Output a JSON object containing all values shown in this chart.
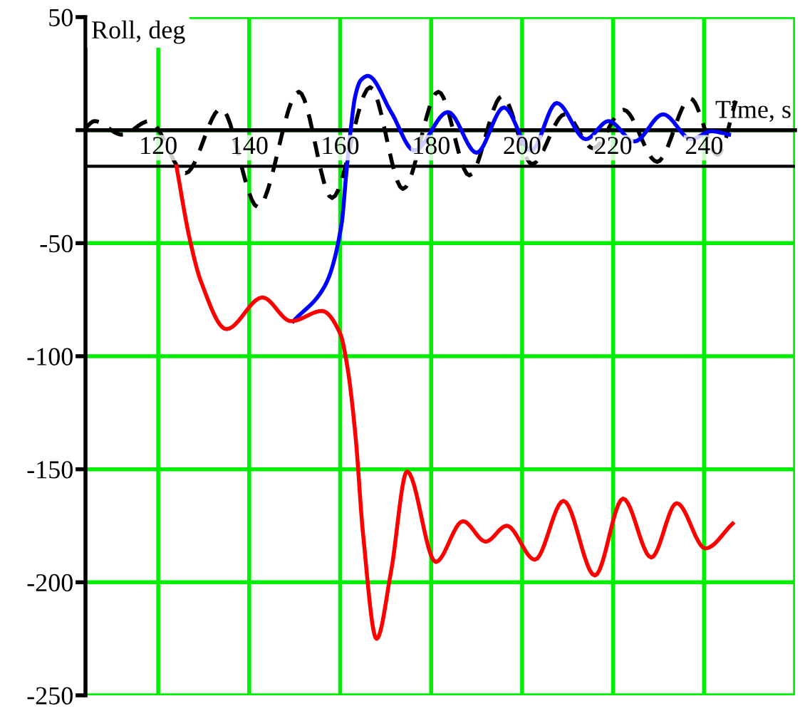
{
  "chart_data": {
    "type": "line",
    "xlabel": "Time, s",
    "ylabel": "Roll, deg",
    "xlim": [
      104,
      260
    ],
    "ylim": [
      -250,
      50
    ],
    "xticks": [
      120,
      140,
      160,
      180,
      200,
      220,
      240,
      {
        "value": 260,
        "label": null
      }
    ],
    "yticks": [
      50,
      {
        "value": 0,
        "label": null
      },
      -50,
      -100,
      -150,
      -200,
      -250
    ],
    "grid": true,
    "marker": "none",
    "ref_lines": [
      {
        "axis": "y",
        "value": -16,
        "color": "#000000",
        "line_style": "solid"
      }
    ],
    "series": [
      {
        "color": "#000000",
        "line_style": "dashed",
        "x": [
          104,
          106,
          112,
          118,
          126,
          133.8,
          141.9,
          150.9,
          158.2,
          166.6,
          173.8,
          181.6,
          188.4,
          195.6,
          202.2,
          209.4,
          215.6,
          222.3,
          229.7,
          237,
          243,
          247
        ],
        "values": [
          1,
          4,
          -2,
          4,
          -19,
          9.5,
          -34,
          17,
          -30,
          19,
          -26,
          17,
          -20,
          15,
          -15,
          7,
          -8,
          9,
          -14,
          14,
          -11,
          13
        ]
      },
      {
        "color": "#0000ff",
        "line_style": "solid",
        "x": [
          149.7,
          156.6,
          160.3,
          161.3,
          162.3,
          163.3,
          164.5,
          166.1,
          171.2,
          176.3,
          183.7,
          190,
          196,
          202,
          207.6,
          214,
          219,
          224.7,
          231,
          237.2,
          241.6,
          245.5
        ],
        "values": [
          -84.5,
          -69,
          -41.6,
          -20,
          0,
          15,
          22,
          24,
          8,
          -9,
          8,
          -10,
          10,
          -9,
          12,
          -4,
          4,
          -5,
          7,
          -4,
          -0.5,
          -2
        ]
      },
      {
        "color": "#ff0000",
        "line_style": "solid",
        "x": [
          124,
          126.9,
          129.4,
          135,
          142.9,
          149.2,
          156,
          160,
          161.6,
          163.4,
          165,
          168,
          171.2,
          174.7,
          181,
          187,
          192,
          196.6,
          202.8,
          209.1,
          216,
          222.2,
          228.4,
          234,
          240.3,
          246.3
        ],
        "values": [
          -16,
          -48,
          -67,
          -88,
          -74,
          -84.5,
          -80,
          -90,
          -105,
          -136,
          -178,
          -225,
          -195,
          -151,
          -191,
          -173,
          -182,
          -175,
          -190,
          -164,
          -197,
          -163,
          -189,
          -165,
          -185,
          -174
        ]
      }
    ]
  }
}
